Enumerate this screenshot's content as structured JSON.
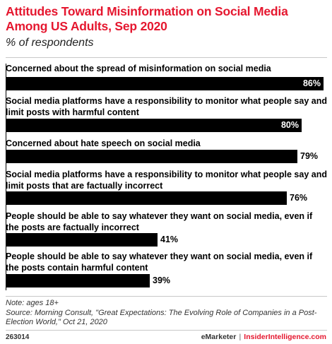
{
  "title": "Attitudes Toward Misinformation on Social Media Among US Adults, Sep 2020",
  "subtitle": "% of respondents",
  "note": "Note: ages 18+",
  "source": "Source: Morning Consult, \"Great Expectations: The Evolving Role of Companies in a Post-Election World,\" Oct 21, 2020",
  "chart_id": "263014",
  "brand": {
    "left": "eMarketer",
    "separator": "|",
    "right": "InsiderIntelligence.com"
  },
  "colors": {
    "title": "#e5172f",
    "bar": "#000000",
    "brand_accent": "#e5172f"
  },
  "chart_data": {
    "type": "bar",
    "orientation": "horizontal",
    "unit": "%",
    "xlim": [
      0,
      86
    ],
    "categories": [
      "Concerned about the spread of misinformation on social media",
      "Social media platforms have a responsibility to monitor what people say and limit posts with harmful content",
      "Concerned about hate speech on social media",
      "Social media platforms have a responsibility to monitor what people say and limit posts that are factually incorrect",
      "People should be able to say whatever they want on social media, even if the posts are factually incorrect",
      "People should be able to say whatever they want on social media, even if the posts contain harmful content"
    ],
    "values": [
      86,
      80,
      79,
      76,
      41,
      39
    ],
    "value_labels": [
      "86%",
      "80%",
      "79%",
      "76%",
      "41%",
      "39%"
    ]
  }
}
